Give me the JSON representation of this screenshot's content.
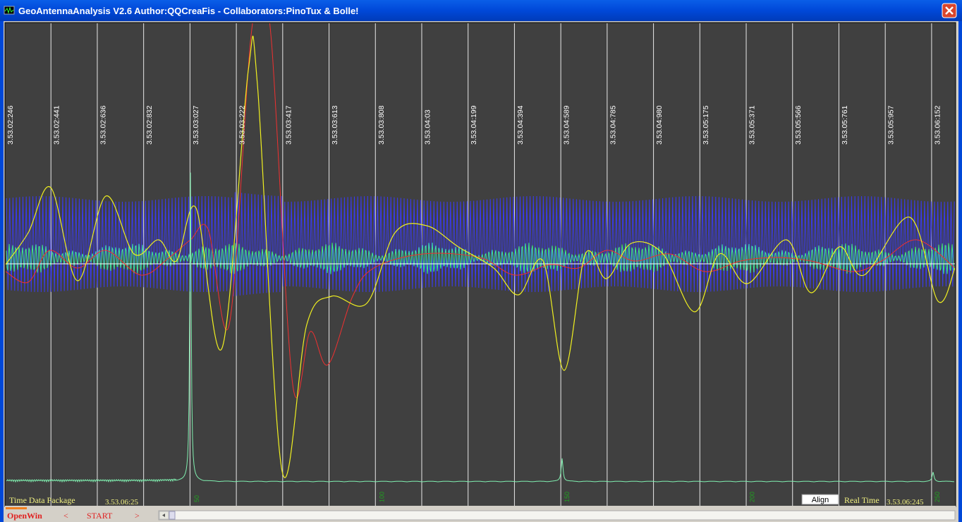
{
  "window": {
    "title": "GeoAntennaAnalysis V2.6 Author:QQCreaFis - Collaborators:PinoTux & Bolle!"
  },
  "plot": {
    "time_labels": [
      "3.53.02:246",
      "3.53.02:441",
      "3.53.02:636",
      "3.53.02:832",
      "3.53.03:027",
      "3.53.03:222",
      "3.53.03:417",
      "3.53.03:613",
      "3.53.03:808",
      "3.53.04:03",
      "3.53.04:199",
      "3.53.04:394",
      "3.53.04:589",
      "3.53.04:785",
      "3.53.04:980",
      "3.53.05:175",
      "3.53.05:371",
      "3.53.05:566",
      "3.53.05:761",
      "3.53.05:957",
      "3.53.06:152"
    ],
    "sample_labels": [
      "50",
      "100",
      "150",
      "200",
      "250"
    ]
  },
  "status": {
    "package_label": "Time Data Package",
    "package_time": "3.53.06:25",
    "align_button": "Align",
    "real_time_label": "Real Time",
    "real_time": "3.53.06:245"
  },
  "toolbar": {
    "open_win": "OpenWin",
    "prev": "<",
    "start": "START",
    "next": ">"
  }
}
